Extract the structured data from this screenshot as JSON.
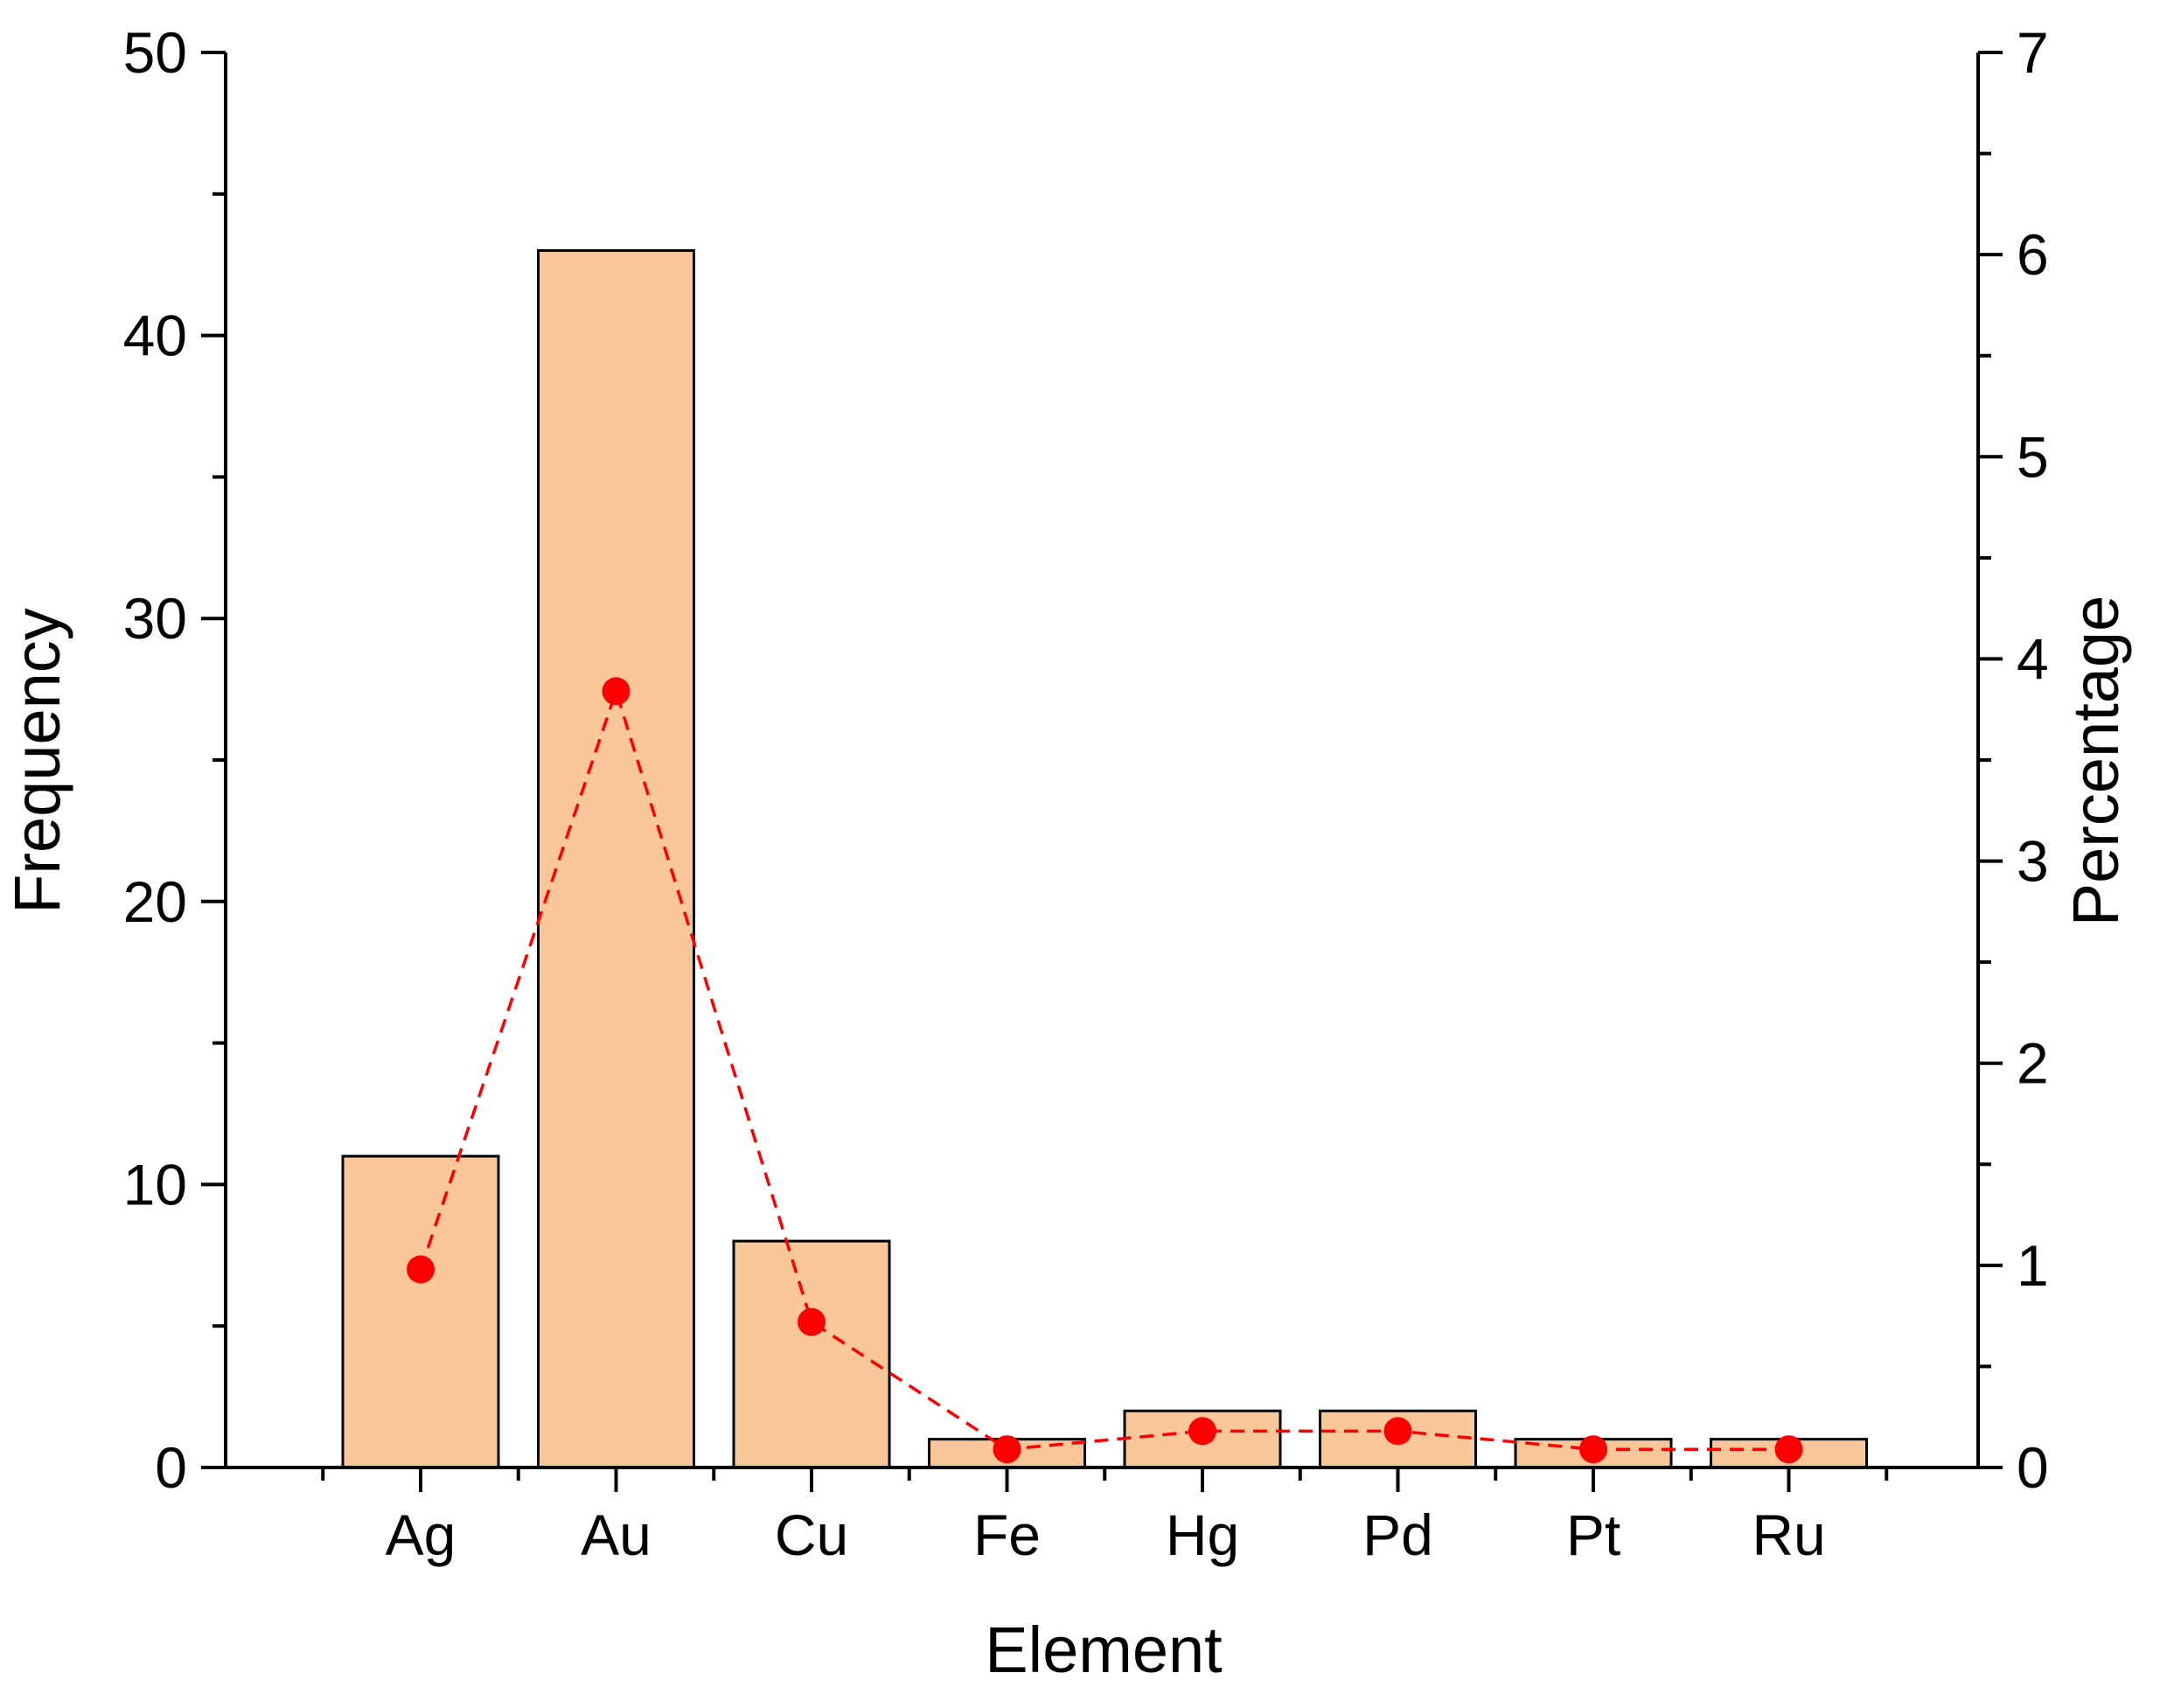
{
  "chart_data": {
    "type": "bar",
    "categories": [
      "Ag",
      "Au",
      "Cu",
      "Fe",
      "Hg",
      "Pd",
      "Pt",
      "Ru"
    ],
    "xlabel": "Element",
    "ylabel": "Frequency",
    "y2label": "Percentage",
    "ylim": [
      0,
      50
    ],
    "y2lim": [
      0,
      7
    ],
    "yticks": [
      "0",
      "10",
      "20",
      "30",
      "40",
      "50"
    ],
    "y2ticks": [
      "0",
      "1",
      "2",
      "3",
      "4",
      "5",
      "6",
      "7"
    ],
    "grid": false,
    "series": [
      {
        "type": "bar",
        "axis": "left",
        "values": [
          11,
          43,
          8,
          1,
          2,
          2,
          1,
          1
        ],
        "color": "#F9C79A"
      },
      {
        "type": "line",
        "axis": "right",
        "style": "dashed",
        "values": [
          0.98,
          3.84,
          0.72,
          0.09,
          0.18,
          0.18,
          0.09,
          0.09
        ],
        "color": "#FF0000"
      }
    ]
  }
}
